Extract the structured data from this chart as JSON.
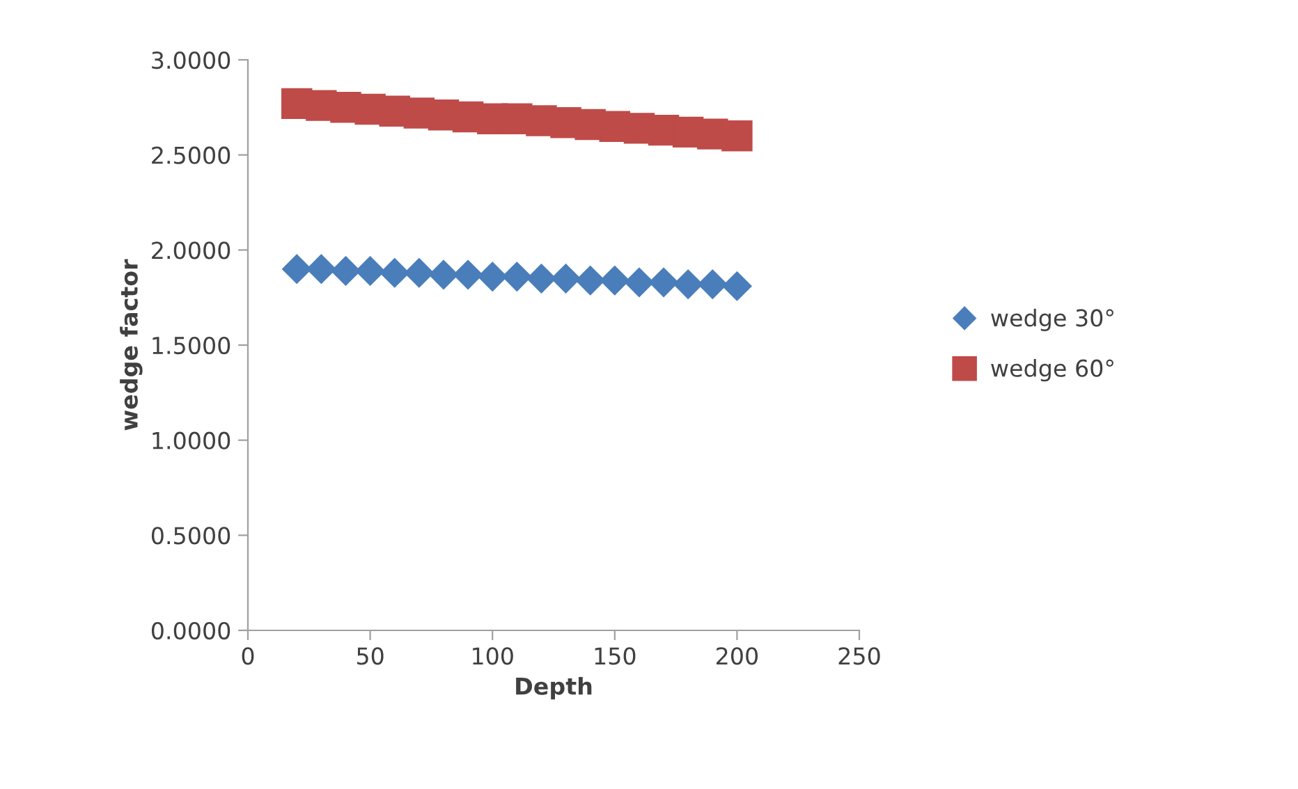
{
  "chart_data": {
    "type": "scatter",
    "xlabel": "Depth",
    "ylabel": "wedge factor",
    "x": [
      20,
      30,
      40,
      50,
      60,
      70,
      80,
      90,
      100,
      110,
      120,
      130,
      140,
      150,
      160,
      170,
      180,
      190,
      200
    ],
    "series": [
      {
        "name": "wedge 30°",
        "color": "#4a7ebb",
        "marker": "diamond",
        "values": [
          1.9,
          1.9,
          1.89,
          1.89,
          1.88,
          1.88,
          1.87,
          1.87,
          1.86,
          1.86,
          1.85,
          1.85,
          1.84,
          1.84,
          1.83,
          1.83,
          1.82,
          1.82,
          1.81
        ]
      },
      {
        "name": "wedge 60°",
        "color": "#be4b48",
        "marker": "square",
        "values": [
          2.77,
          2.76,
          2.75,
          2.74,
          2.73,
          2.72,
          2.71,
          2.7,
          2.69,
          2.69,
          2.68,
          2.67,
          2.66,
          2.65,
          2.64,
          2.63,
          2.62,
          2.61,
          2.6
        ]
      }
    ],
    "xlim": [
      0,
      250
    ],
    "xticks": [
      0,
      50,
      100,
      150,
      200,
      250
    ],
    "ylim": [
      0,
      3
    ],
    "yticks": [
      {
        "value": 0,
        "label": "0.0000"
      },
      {
        "value": 0.5,
        "label": "0.5000"
      },
      {
        "value": 1,
        "label": "1.0000"
      },
      {
        "value": 1.5,
        "label": "1.5000"
      },
      {
        "value": 2,
        "label": "2.0000"
      },
      {
        "value": 2.5,
        "label": "2.5000"
      },
      {
        "value": 3,
        "label": "3.0000"
      }
    ],
    "grid": false,
    "legend": "right"
  }
}
